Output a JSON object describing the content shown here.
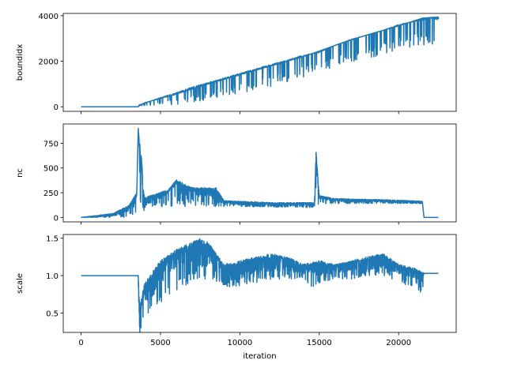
{
  "chart_data": [
    {
      "type": "line",
      "ylabel": "boundidx",
      "xlim": [
        -1125,
        23625
      ],
      "ylim": [
        -200,
        4100
      ],
      "yticks": [
        0,
        2000,
        4000
      ],
      "xticks": [
        0,
        5000,
        10000,
        15000,
        20000
      ],
      "x_tick_labels_shown": false,
      "series": [
        {
          "color": "#1f77b4",
          "notes_segments": "flat 0 from 0 to ~3600; then rising band: upper envelope ~0.185*(x-3600) reaching ~3950 at 22500, lower band with dips; ends at ~3850",
          "points": [
            [
              0,
              0
            ],
            [
              3600,
              0
            ],
            [
              3650,
              80
            ],
            [
              4000,
              150
            ],
            [
              5000,
              400
            ],
            [
              6000,
              600
            ],
            [
              7000,
              850
            ],
            [
              8000,
              1050
            ],
            [
              9000,
              1250
            ],
            [
              10000,
              1450
            ],
            [
              11000,
              1650
            ],
            [
              12000,
              1850
            ],
            [
              13000,
              2050
            ],
            [
              14000,
              2250
            ],
            [
              15000,
              2400
            ],
            [
              16000,
              2700
            ],
            [
              17000,
              2950
            ],
            [
              18000,
              3150
            ],
            [
              19000,
              3350
            ],
            [
              20000,
              3600
            ],
            [
              21000,
              3750
            ],
            [
              22000,
              3900
            ],
            [
              22500,
              3850
            ]
          ],
          "upper_envelope": [
            [
              3600,
              0
            ],
            [
              4000,
              180
            ],
            [
              6000,
              550
            ],
            [
              8000,
              1000
            ],
            [
              10000,
              1400
            ],
            [
              12000,
              1800
            ],
            [
              14000,
              2200
            ],
            [
              16000,
              2700
            ],
            [
              18000,
              3150
            ],
            [
              20000,
              3550
            ],
            [
              21500,
              3900
            ],
            [
              22500,
              3950
            ]
          ],
          "lower_envelope": [
            [
              3600,
              0
            ],
            [
              4000,
              0
            ],
            [
              6000,
              100
            ],
            [
              8000,
              300
            ],
            [
              10000,
              600
            ],
            [
              12000,
              900
            ],
            [
              14000,
              1300
            ],
            [
              16000,
              1700
            ],
            [
              18000,
              2100
            ],
            [
              20000,
              2500
            ],
            [
              21500,
              2700
            ],
            [
              22500,
              2600
            ]
          ]
        }
      ]
    },
    {
      "type": "line",
      "ylabel": "nc",
      "xlim": [
        -1125,
        23625
      ],
      "ylim": [
        -45,
        945
      ],
      "yticks": [
        0,
        250,
        500,
        750
      ],
      "xticks": [
        0,
        5000,
        10000,
        15000,
        20000
      ],
      "x_tick_labels_shown": false,
      "series": [
        {
          "color": "#1f77b4",
          "points": [
            [
              0,
              0
            ],
            [
              500,
              2
            ],
            [
              1000,
              5
            ],
            [
              1500,
              10
            ],
            [
              2000,
              20
            ],
            [
              2500,
              40
            ],
            [
              3000,
              80
            ],
            [
              3300,
              120
            ],
            [
              3500,
              200
            ],
            [
              3600,
              900
            ],
            [
              3700,
              400
            ],
            [
              3800,
              600
            ],
            [
              3900,
              100
            ],
            [
              4200,
              150
            ],
            [
              5000,
              200
            ],
            [
              5500,
              250
            ],
            [
              6000,
              350
            ],
            [
              6500,
              150
            ],
            [
              7000,
              300
            ],
            [
              7500,
              200
            ],
            [
              8000,
              250
            ],
            [
              8500,
              180
            ],
            [
              9000,
              150
            ],
            [
              10000,
              130
            ],
            [
              11000,
              120
            ],
            [
              12000,
              120
            ],
            [
              13000,
              120
            ],
            [
              14000,
              120
            ],
            [
              14700,
              120
            ],
            [
              14800,
              650
            ],
            [
              14900,
              300
            ],
            [
              15000,
              200
            ],
            [
              15500,
              180
            ],
            [
              16000,
              170
            ],
            [
              17000,
              160
            ],
            [
              18000,
              160
            ],
            [
              19000,
              160
            ],
            [
              20000,
              150
            ],
            [
              21000,
              150
            ],
            [
              21500,
              150
            ],
            [
              21600,
              0
            ],
            [
              22500,
              0
            ]
          ],
          "upper_envelope": [
            [
              0,
              0
            ],
            [
              2000,
              40
            ],
            [
              3000,
              120
            ],
            [
              3500,
              250
            ],
            [
              3600,
              900
            ],
            [
              3800,
              600
            ],
            [
              4000,
              200
            ],
            [
              5500,
              280
            ],
            [
              6000,
              380
            ],
            [
              7000,
              300
            ],
            [
              8500,
              300
            ],
            [
              9000,
              170
            ],
            [
              12000,
              150
            ],
            [
              14700,
              150
            ],
            [
              14800,
              660
            ],
            [
              15000,
              220
            ],
            [
              16000,
              190
            ],
            [
              19000,
              180
            ],
            [
              21500,
              165
            ],
            [
              21600,
              0
            ],
            [
              22500,
              0
            ]
          ],
          "lower_envelope": [
            [
              0,
              0
            ],
            [
              3500,
              0
            ],
            [
              3600,
              100
            ],
            [
              4000,
              100
            ],
            [
              9000,
              110
            ],
            [
              14700,
              100
            ],
            [
              15000,
              140
            ],
            [
              21500,
              140
            ],
            [
              21600,
              0
            ],
            [
              22500,
              0
            ]
          ]
        }
      ]
    },
    {
      "type": "line",
      "ylabel": "scale",
      "xlabel": "iteration",
      "xlim": [
        -1125,
        23625
      ],
      "ylim": [
        0.24,
        1.55
      ],
      "yticks": [
        0.5,
        1.0,
        1.5
      ],
      "ytick_labels": [
        "0.5",
        "1.0",
        "1.5"
      ],
      "xticks": [
        0,
        5000,
        10000,
        15000,
        20000
      ],
      "xtick_labels": [
        "0",
        "5000",
        "10000",
        "15000",
        "20000"
      ],
      "series": [
        {
          "color": "#1f77b4",
          "points": [
            [
              0,
              1.0
            ],
            [
              3600,
              1.0
            ],
            [
              3600,
              0.35
            ],
            [
              3700,
              0.3
            ],
            [
              3800,
              0.6
            ],
            [
              4000,
              0.7
            ],
            [
              4500,
              0.8
            ],
            [
              5000,
              0.95
            ],
            [
              5500,
              1.1
            ],
            [
              6000,
              1.15
            ],
            [
              6500,
              1.2
            ],
            [
              7000,
              1.25
            ],
            [
              7500,
              1.2
            ],
            [
              8000,
              1.2
            ],
            [
              8500,
              1.1
            ],
            [
              9000,
              0.95
            ],
            [
              10000,
              1.0
            ],
            [
              11000,
              1.05
            ],
            [
              12000,
              1.1
            ],
            [
              13000,
              1.1
            ],
            [
              14000,
              1.05
            ],
            [
              15000,
              1.05
            ],
            [
              16000,
              1.05
            ],
            [
              17000,
              1.1
            ],
            [
              18000,
              1.1
            ],
            [
              19000,
              1.15
            ],
            [
              20000,
              1.05
            ],
            [
              21000,
              1.0
            ],
            [
              21500,
              0.95
            ],
            [
              21600,
              1.03
            ],
            [
              22500,
              1.03
            ]
          ],
          "upper_envelope": [
            [
              0,
              1.0
            ],
            [
              3600,
              1.0
            ],
            [
              3700,
              0.6
            ],
            [
              4000,
              0.9
            ],
            [
              5000,
              1.2
            ],
            [
              6000,
              1.35
            ],
            [
              7000,
              1.45
            ],
            [
              7500,
              1.5
            ],
            [
              8000,
              1.45
            ],
            [
              8500,
              1.3
            ],
            [
              9000,
              1.15
            ],
            [
              10000,
              1.2
            ],
            [
              11000,
              1.25
            ],
            [
              12000,
              1.3
            ],
            [
              13000,
              1.25
            ],
            [
              14000,
              1.15
            ],
            [
              15000,
              1.2
            ],
            [
              16000,
              1.15
            ],
            [
              17000,
              1.2
            ],
            [
              18000,
              1.25
            ],
            [
              19000,
              1.3
            ],
            [
              20000,
              1.15
            ],
            [
              21000,
              1.1
            ],
            [
              21500,
              1.05
            ],
            [
              21600,
              1.03
            ],
            [
              22500,
              1.03
            ]
          ],
          "lower_envelope": [
            [
              0,
              1.0
            ],
            [
              3600,
              1.0
            ],
            [
              3650,
              0.35
            ],
            [
              3750,
              0.28
            ],
            [
              4000,
              0.45
            ],
            [
              5000,
              0.6
            ],
            [
              6000,
              0.8
            ],
            [
              7000,
              0.9
            ],
            [
              8000,
              0.95
            ],
            [
              9000,
              0.85
            ],
            [
              10000,
              0.85
            ],
            [
              11000,
              0.9
            ],
            [
              12000,
              0.95
            ],
            [
              13000,
              0.95
            ],
            [
              14000,
              0.95
            ],
            [
              14800,
              0.75
            ],
            [
              15000,
              0.9
            ],
            [
              16000,
              0.95
            ],
            [
              17000,
              0.95
            ],
            [
              18000,
              1.0
            ],
            [
              19000,
              1.0
            ],
            [
              20000,
              0.9
            ],
            [
              21000,
              0.85
            ],
            [
              21500,
              0.75
            ],
            [
              21600,
              1.03
            ],
            [
              22500,
              1.03
            ]
          ]
        }
      ]
    }
  ]
}
